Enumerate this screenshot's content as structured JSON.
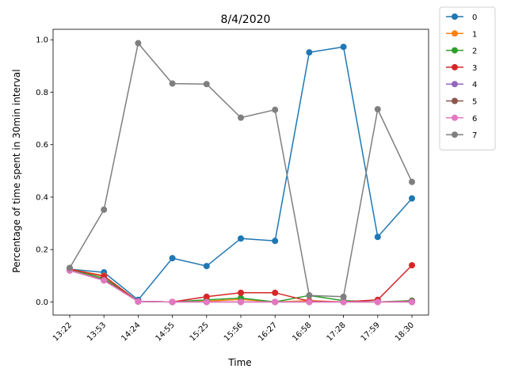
{
  "chart_data": {
    "type": "line",
    "title": "8/4/2020",
    "xlabel": "Time",
    "ylabel": "Percentage of time spent in 30min interval",
    "categories": [
      "13:22",
      "13:53",
      "14:24",
      "14:55",
      "15:25",
      "15:56",
      "16:27",
      "16:58",
      "17:28",
      "17:59",
      "18:30"
    ],
    "ylim": [
      -0.05,
      1.04
    ],
    "yticks": [
      "0.0",
      "0.2",
      "0.4",
      "0.6",
      "0.8",
      "1.0"
    ],
    "legend_position": "outside-right",
    "grid": false,
    "series": [
      {
        "name": "0",
        "color": "#1f77b4",
        "values": [
          0.125,
          0.113,
          0.008,
          0.167,
          0.137,
          0.242,
          0.233,
          0.952,
          0.973,
          0.248,
          0.395
        ]
      },
      {
        "name": "1",
        "color": "#ff7f0e",
        "values": [
          0.125,
          0.1,
          0.002,
          0.0,
          0.003,
          0.01,
          0.0,
          0.005,
          0.0,
          0.0,
          0.0
        ]
      },
      {
        "name": "2",
        "color": "#2ca02c",
        "values": [
          0.125,
          0.09,
          0.002,
          0.0,
          0.008,
          0.015,
          0.0,
          0.025,
          0.005,
          0.0,
          0.005
        ]
      },
      {
        "name": "3",
        "color": "#d62728",
        "values": [
          0.125,
          0.098,
          0.002,
          0.0,
          0.02,
          0.035,
          0.035,
          0.003,
          0.0,
          0.008,
          0.14
        ]
      },
      {
        "name": "4",
        "color": "#9467bd",
        "values": [
          0.12,
          0.083,
          0.002,
          0.0,
          0.0,
          0.0,
          0.0,
          0.0,
          0.0,
          0.0,
          0.0
        ]
      },
      {
        "name": "5",
        "color": "#8c564b",
        "values": [
          0.12,
          0.085,
          0.002,
          0.0,
          0.0,
          0.0,
          0.0,
          0.0,
          0.0,
          0.0,
          0.003
        ]
      },
      {
        "name": "6",
        "color": "#e377c2",
        "values": [
          0.12,
          0.082,
          0.002,
          0.0,
          0.0,
          0.0,
          0.0,
          0.0,
          0.0,
          0.0,
          0.0
        ]
      },
      {
        "name": "7",
        "color": "#7f7f7f",
        "values": [
          0.13,
          0.352,
          0.987,
          0.833,
          0.831,
          0.703,
          0.733,
          0.025,
          0.02,
          0.735,
          0.458
        ]
      }
    ]
  }
}
